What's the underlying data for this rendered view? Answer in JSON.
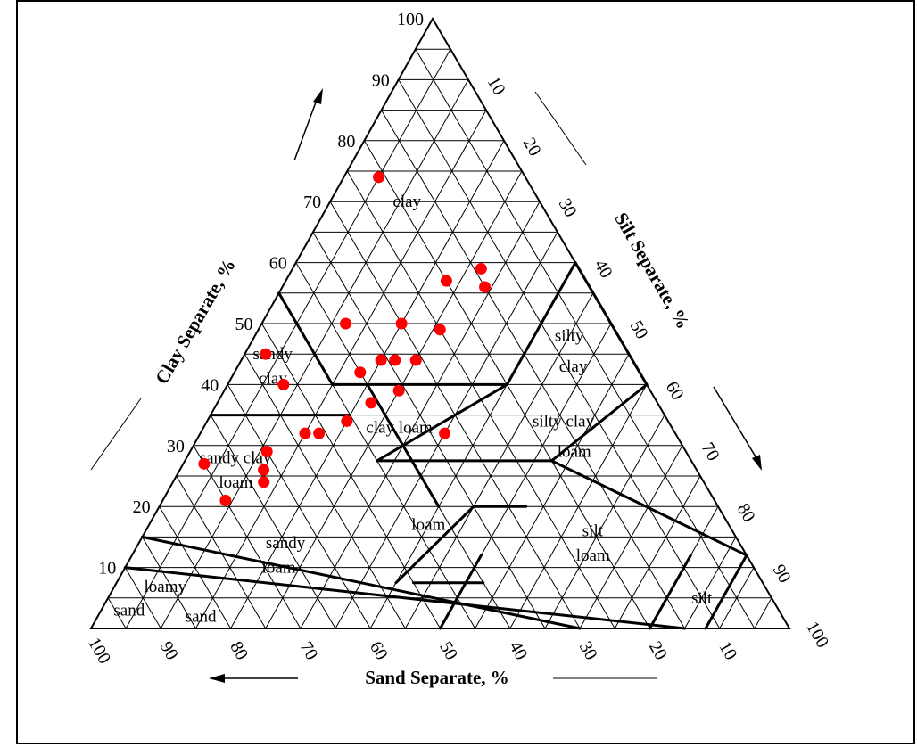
{
  "chart_data": {
    "type": "ternary",
    "title": "",
    "axes": {
      "clay": {
        "label": "Clay Separate, %"
      },
      "silt": {
        "label": "Silt Separate, %"
      },
      "sand": {
        "label": "Sand Separate, %"
      }
    },
    "ticks": {
      "clay": [
        "10",
        "20",
        "30",
        "40",
        "50",
        "60",
        "70",
        "80",
        "90",
        "100"
      ],
      "silt": [
        "10",
        "20",
        "30",
        "40",
        "50",
        "60",
        "70",
        "80",
        "90",
        "100"
      ],
      "sand": [
        "100",
        "90",
        "80",
        "70",
        "60",
        "50",
        "40",
        "30",
        "20",
        "10"
      ]
    },
    "range": [
      0,
      100
    ],
    "grid": true,
    "grid_step": 5,
    "zones": [
      {
        "label": "clay"
      },
      {
        "label": "sandy clay"
      },
      {
        "label": "silty clay"
      },
      {
        "label": "clay loam"
      },
      {
        "label": "silty clay loam"
      },
      {
        "label": "sandy clay loam"
      },
      {
        "label": "loam"
      },
      {
        "label": "silt loam"
      },
      {
        "label": "sandy loam"
      },
      {
        "label": "loamy sand"
      },
      {
        "label": "sand"
      },
      {
        "label": "silt"
      }
    ],
    "zone_lines": [
      [
        [
          55,
          0
        ],
        [
          40,
          15
        ]
      ],
      [
        [
          40,
          15
        ],
        [
          40,
          40
        ]
      ],
      [
        [
          40,
          40
        ],
        [
          60,
          40
        ]
      ],
      [
        [
          40,
          40
        ],
        [
          27.5,
          27.5
        ]
      ],
      [
        [
          35,
          0
        ],
        [
          35,
          20
        ]
      ],
      [
        [
          27.5,
          27.5
        ],
        [
          27.5,
          52.5
        ]
      ],
      [
        [
          40,
          20
        ],
        [
          20,
          40
        ]
      ],
      [
        [
          20,
          45
        ],
        [
          7.5,
          40
        ]
      ],
      [
        [
          20,
          45
        ],
        [
          20,
          52.5
        ]
      ],
      [
        [
          7.5,
          52.5
        ],
        [
          7.5,
          42.5
        ]
      ],
      [
        [
          27.5,
          52.5
        ],
        [
          12,
          88
        ]
      ],
      [
        [
          27.5,
          52.5
        ],
        [
          40,
          60
        ]
      ],
      [
        [
          40,
          60
        ],
        [
          60,
          40
        ]
      ],
      [
        [
          12,
          50
        ],
        [
          0,
          50
        ]
      ],
      [
        [
          12,
          88
        ],
        [
          0,
          88
        ]
      ],
      [
        [
          15,
          0
        ],
        [
          0,
          70
        ]
      ],
      [
        [
          10,
          0
        ],
        [
          0,
          85
        ]
      ],
      [
        [
          12,
          80
        ],
        [
          0,
          80
        ]
      ]
    ],
    "points": [
      {
        "clay": 74,
        "silt": 5
      },
      {
        "clay": 59,
        "silt": 27
      },
      {
        "clay": 57,
        "silt": 23
      },
      {
        "clay": 56,
        "silt": 29
      },
      {
        "clay": 50,
        "silt": 12
      },
      {
        "clay": 50,
        "silt": 20
      },
      {
        "clay": 49,
        "silt": 26
      },
      {
        "clay": 45,
        "silt": 3
      },
      {
        "clay": 44,
        "silt": 20
      },
      {
        "clay": 44,
        "silt": 22
      },
      {
        "clay": 44,
        "silt": 25
      },
      {
        "clay": 42,
        "silt": 18
      },
      {
        "clay": 40,
        "silt": 8
      },
      {
        "clay": 39,
        "silt": 25
      },
      {
        "clay": 37,
        "silt": 22
      },
      {
        "clay": 34,
        "silt": 20
      },
      {
        "clay": 32,
        "silt": 15
      },
      {
        "clay": 32,
        "silt": 17
      },
      {
        "clay": 32,
        "silt": 35
      },
      {
        "clay": 29,
        "silt": 11
      },
      {
        "clay": 27,
        "silt": 3
      },
      {
        "clay": 26,
        "silt": 12
      },
      {
        "clay": 24,
        "silt": 13
      },
      {
        "clay": 21,
        "silt": 9
      }
    ],
    "point_color": "#ff0000",
    "line_color": "#000000"
  }
}
